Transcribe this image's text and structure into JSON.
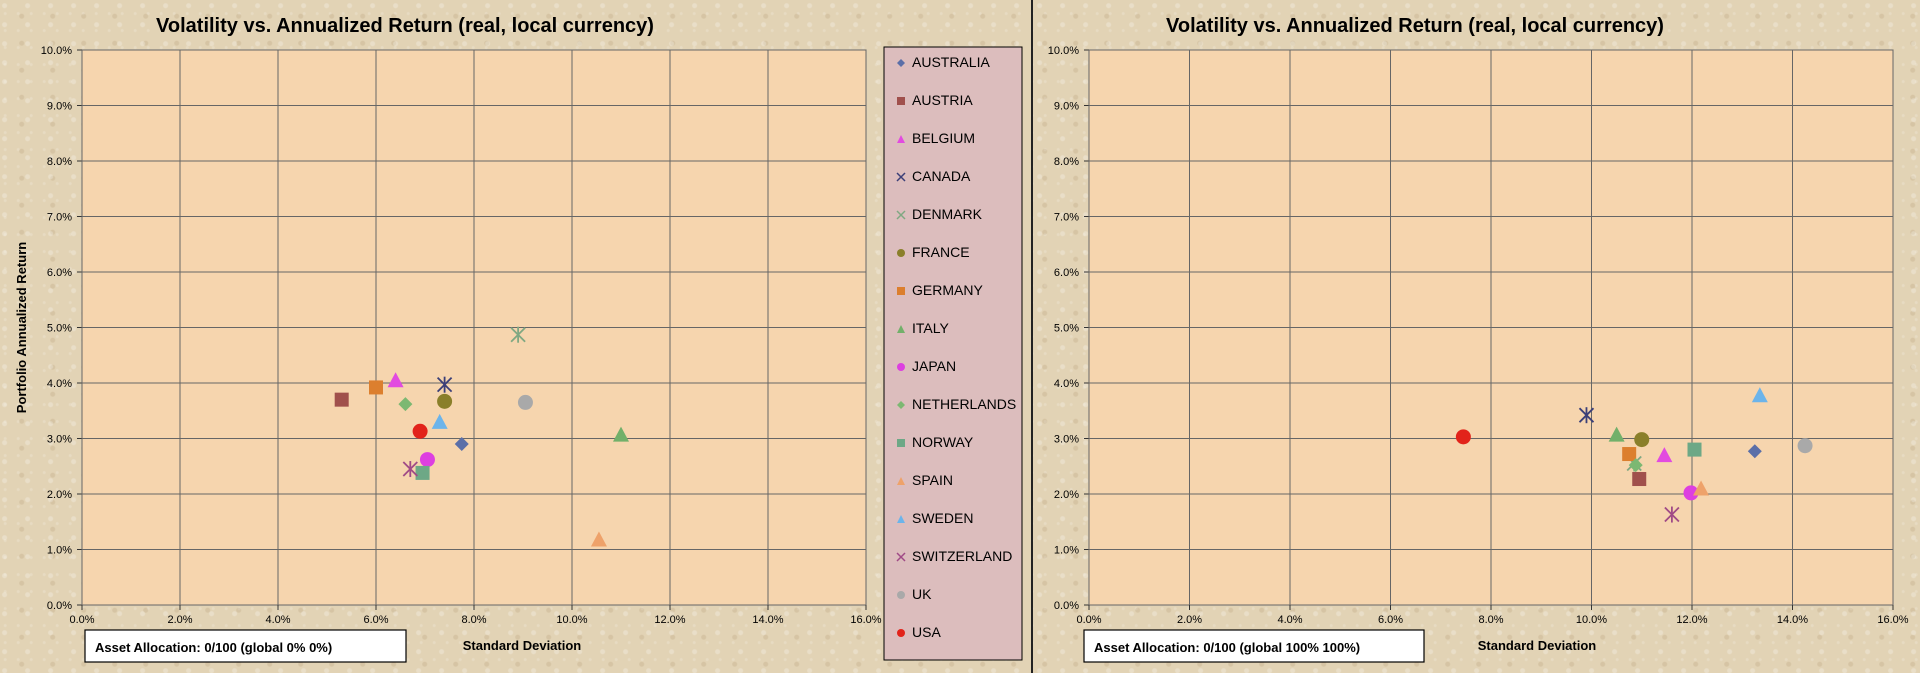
{
  "colors": {
    "plot_bg": "#f6d5ae",
    "legend_bg": "#dcbdbd",
    "grid": "#666666",
    "AUSTRALIA": "#5b6fa8",
    "AUSTRIA": "#a0504c",
    "BELGIUM": "#e24be0",
    "CANADA": "#3b3f78",
    "DENMARK": "#7fa882",
    "FRANCE": "#8a7f2a",
    "GERMANY": "#dc7f2e",
    "ITALY": "#72b06a",
    "JAPAN": "#dd3fe0",
    "NETHERLANDS": "#7cb872",
    "NORWAY": "#6da886",
    "SPAIN": "#eea26a",
    "SWEDEN": "#6cb4ea",
    "SWITZERLAND": "#a04a86",
    "UK": "#a9a9a9",
    "USA": "#e2231a"
  },
  "chart_data": [
    {
      "type": "scatter",
      "title": "Volatility vs. Annualized Return (real, local currency)",
      "xlabel": "Standard Deviation",
      "ylabel": "Portfolio Annualized Return",
      "xlim": [
        0,
        16
      ],
      "ylim": [
        0,
        10
      ],
      "x_ticks": [
        "0.0%",
        "2.0%",
        "4.0%",
        "6.0%",
        "8.0%",
        "10.0%",
        "12.0%",
        "14.0%",
        "16.0%"
      ],
      "y_ticks": [
        "0.0%",
        "1.0%",
        "2.0%",
        "3.0%",
        "4.0%",
        "5.0%",
        "6.0%",
        "7.0%",
        "8.0%",
        "9.0%",
        "10.0%"
      ],
      "grid": true,
      "legend_position": "right",
      "annotation": "Asset Allocation: 0/100  (global 0% 0%)",
      "series": [
        {
          "name": "AUSTRALIA",
          "marker": "diamond",
          "x": 7.75,
          "y": 2.9
        },
        {
          "name": "AUSTRIA",
          "marker": "square",
          "x": 5.3,
          "y": 3.7
        },
        {
          "name": "BELGIUM",
          "marker": "triangle",
          "x": 6.4,
          "y": 4.05
        },
        {
          "name": "CANADA",
          "marker": "star",
          "x": 7.4,
          "y": 3.97
        },
        {
          "name": "DENMARK",
          "marker": "star",
          "x": 8.9,
          "y": 4.87
        },
        {
          "name": "FRANCE",
          "marker": "circle",
          "x": 7.4,
          "y": 3.67
        },
        {
          "name": "GERMANY",
          "marker": "square",
          "x": 6.0,
          "y": 3.92
        },
        {
          "name": "ITALY",
          "marker": "triangle",
          "x": 11.0,
          "y": 3.07
        },
        {
          "name": "JAPAN",
          "marker": "circle",
          "x": 7.05,
          "y": 2.62
        },
        {
          "name": "NETHERLANDS",
          "marker": "diamond",
          "x": 6.6,
          "y": 3.62
        },
        {
          "name": "NORWAY",
          "marker": "square",
          "x": 6.95,
          "y": 2.38
        },
        {
          "name": "SPAIN",
          "marker": "triangle",
          "x": 10.55,
          "y": 1.18
        },
        {
          "name": "SWEDEN",
          "marker": "triangle",
          "x": 7.3,
          "y": 3.3
        },
        {
          "name": "SWITZERLAND",
          "marker": "star",
          "x": 6.7,
          "y": 2.45
        },
        {
          "name": "UK",
          "marker": "circle",
          "x": 9.05,
          "y": 3.65
        },
        {
          "name": "USA",
          "marker": "circle",
          "x": 6.9,
          "y": 3.13
        }
      ]
    },
    {
      "type": "scatter",
      "title": "Volatility vs. Annualized Return (real, local currency)",
      "xlabel": "Standard Deviation",
      "ylabel": "",
      "xlim": [
        0,
        16
      ],
      "ylim": [
        0,
        10
      ],
      "x_ticks": [
        "0.0%",
        "2.0%",
        "4.0%",
        "6.0%",
        "8.0%",
        "10.0%",
        "12.0%",
        "14.0%",
        "16.0%"
      ],
      "y_ticks": [
        "0.0%",
        "1.0%",
        "2.0%",
        "3.0%",
        "4.0%",
        "5.0%",
        "6.0%",
        "7.0%",
        "8.0%",
        "9.0%",
        "10.0%"
      ],
      "grid": true,
      "annotation": "Asset Allocation: 0/100  (global 100% 100%)",
      "series": [
        {
          "name": "AUSTRALIA",
          "marker": "diamond",
          "x": 13.25,
          "y": 2.77
        },
        {
          "name": "AUSTRIA",
          "marker": "square",
          "x": 10.95,
          "y": 2.27
        },
        {
          "name": "BELGIUM",
          "marker": "triangle",
          "x": 11.45,
          "y": 2.7
        },
        {
          "name": "CANADA",
          "marker": "star",
          "x": 9.9,
          "y": 3.42
        },
        {
          "name": "DENMARK",
          "marker": "star",
          "x": 10.85,
          "y": 2.55
        },
        {
          "name": "FRANCE",
          "marker": "circle",
          "x": 11.0,
          "y": 2.98
        },
        {
          "name": "GERMANY",
          "marker": "square",
          "x": 10.75,
          "y": 2.72
        },
        {
          "name": "ITALY",
          "marker": "triangle",
          "x": 10.5,
          "y": 3.07
        },
        {
          "name": "JAPAN",
          "marker": "circle",
          "x": 11.98,
          "y": 2.02
        },
        {
          "name": "NETHERLANDS",
          "marker": "diamond",
          "x": 10.88,
          "y": 2.52
        },
        {
          "name": "NORWAY",
          "marker": "square",
          "x": 12.05,
          "y": 2.8
        },
        {
          "name": "SPAIN",
          "marker": "triangle",
          "x": 12.18,
          "y": 2.1
        },
        {
          "name": "SWEDEN",
          "marker": "triangle",
          "x": 13.35,
          "y": 3.78
        },
        {
          "name": "SWITZERLAND",
          "marker": "star",
          "x": 11.6,
          "y": 1.63
        },
        {
          "name": "UK",
          "marker": "circle",
          "x": 14.25,
          "y": 2.87
        },
        {
          "name": "USA",
          "marker": "circle",
          "x": 7.45,
          "y": 3.03
        }
      ]
    }
  ]
}
